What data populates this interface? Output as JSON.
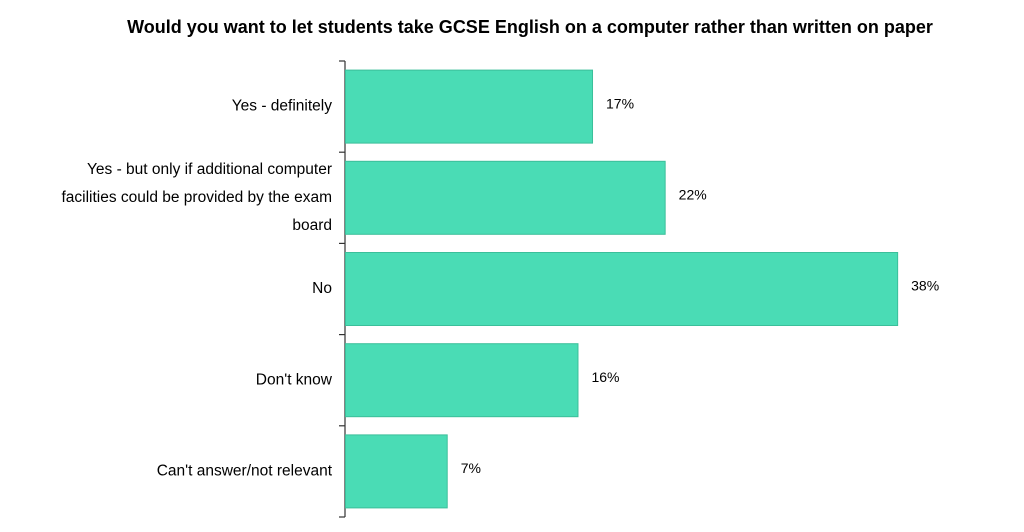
{
  "chart_data": {
    "type": "bar",
    "orientation": "horizontal",
    "title": "Would you want to let students take GCSE English on a computer rather than written on paper",
    "categories": [
      "Yes - definitely",
      "Yes - but only if additional computer facilities could be provided by the exam board",
      "No",
      "Don't know",
      "Can't answer/not relevant"
    ],
    "category_lines": [
      [
        "Yes - definitely"
      ],
      [
        "Yes - but only if additional computer",
        "facilities could be provided by the exam",
        "board"
      ],
      [
        "No"
      ],
      [
        "Don't know"
      ],
      [
        "Can't answer/not relevant"
      ]
    ],
    "values": [
      17,
      22,
      38,
      16,
      7
    ],
    "value_labels": [
      "17%",
      "22%",
      "38%",
      "16%",
      "7%"
    ],
    "unit": "%",
    "xlim": [
      0,
      40
    ],
    "grid": false,
    "legend": "none",
    "bar_color": "#4adcb5",
    "bar_edge_color": "#3bbf9a"
  }
}
